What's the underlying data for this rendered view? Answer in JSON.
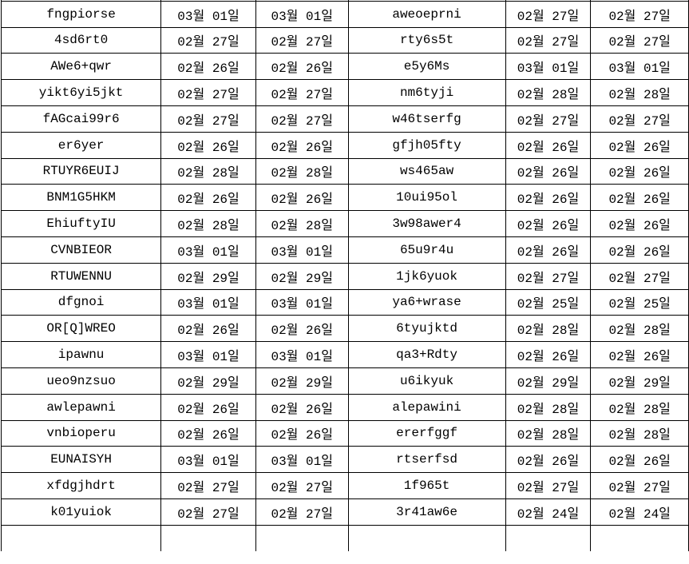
{
  "table": {
    "date_format_note": "MM월 DD일",
    "rows": [
      [
        "fngpiorse",
        "03월 01일",
        "03월 01일",
        "aweoeprni",
        "02월 27일",
        "02월 27일"
      ],
      [
        "4sd6rt0",
        "02월 27일",
        "02월 27일",
        "rty6s5t",
        "02월 27일",
        "02월 27일"
      ],
      [
        "AWe6+qwr",
        "02월 26일",
        "02월 26일",
        "e5y6Ms",
        "03월 01일",
        "03월 01일"
      ],
      [
        "yikt6yi5jkt",
        "02월 27일",
        "02월 27일",
        "nm6tyji",
        "02월 28일",
        "02월 28일"
      ],
      [
        "fAGcai99r6",
        "02월 27일",
        "02월 27일",
        "w46tserfg",
        "02월 27일",
        "02월 27일"
      ],
      [
        "er6yer",
        "02월 26일",
        "02월 26일",
        "gfjh05fty",
        "02월 26일",
        "02월 26일"
      ],
      [
        "RTUYR6EUIJ",
        "02월 28일",
        "02월 28일",
        "ws465aw",
        "02월 26일",
        "02월 26일"
      ],
      [
        "BNM1G5HKM",
        "02월 26일",
        "02월 26일",
        "10ui95ol",
        "02월 26일",
        "02월 26일"
      ],
      [
        "EhiuftyIU",
        "02월 28일",
        "02월 28일",
        "3w98awer4",
        "02월 26일",
        "02월 26일"
      ],
      [
        "CVNBIEOR",
        "03월 01일",
        "03월 01일",
        "65u9r4u",
        "02월 26일",
        "02월 26일"
      ],
      [
        "RTUWENNU",
        "02월 29일",
        "02월 29일",
        "1jk6yuok",
        "02월 27일",
        "02월 27일"
      ],
      [
        "dfgnoi",
        "03월 01일",
        "03월 01일",
        "ya6+wrase",
        "02월 25일",
        "02월 25일"
      ],
      [
        "OR[Q]WREO",
        "02월 26일",
        "02월 26일",
        "6tyujktd",
        "02월 28일",
        "02월 28일"
      ],
      [
        "ipawnu",
        "03월 01일",
        "03월 01일",
        "qa3+Rdty",
        "02월 26일",
        "02월 26일"
      ],
      [
        "ueo9nzsuo",
        "02월 29일",
        "02월 29일",
        "u6ikyuk",
        "02월 29일",
        "02월 29일"
      ],
      [
        "awlepawni",
        "02월 26일",
        "02월 26일",
        "alepawini",
        "02월 28일",
        "02월 28일"
      ],
      [
        "vnbioperu",
        "02월 26일",
        "02월 26일",
        "ererfggf",
        "02월 28일",
        "02월 28일"
      ],
      [
        "EUNAISYH",
        "03월 01일",
        "03월 01일",
        "rtserfsd",
        "02월 26일",
        "02월 26일"
      ],
      [
        "xfdgjhdrt",
        "02월 27일",
        "02월 27일",
        "1f965t",
        "02월 27일",
        "02월 27일"
      ],
      [
        "k01yuiok",
        "02월 27일",
        "02월 27일",
        "3r41aw6e",
        "02월 24일",
        "02월 24일"
      ]
    ]
  }
}
